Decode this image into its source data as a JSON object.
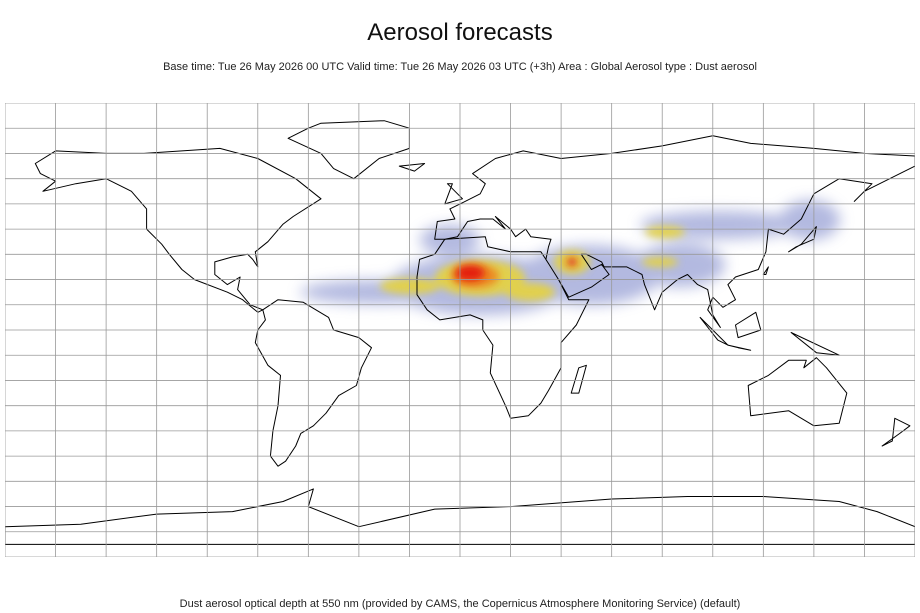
{
  "header": {
    "title": "Aerosol forecasts",
    "subtitle": "Base time: Tue 26 May 2026 00 UTC Valid time: Tue 26 May 2026 03 UTC (+3h) Area : Global Aerosol type : Dust aerosol"
  },
  "footer": {
    "caption": "Dust aerosol optical depth at 550 nm (provided by CAMS, the Copernicus Atmosphere Monitoring Service) (default)"
  }
}
